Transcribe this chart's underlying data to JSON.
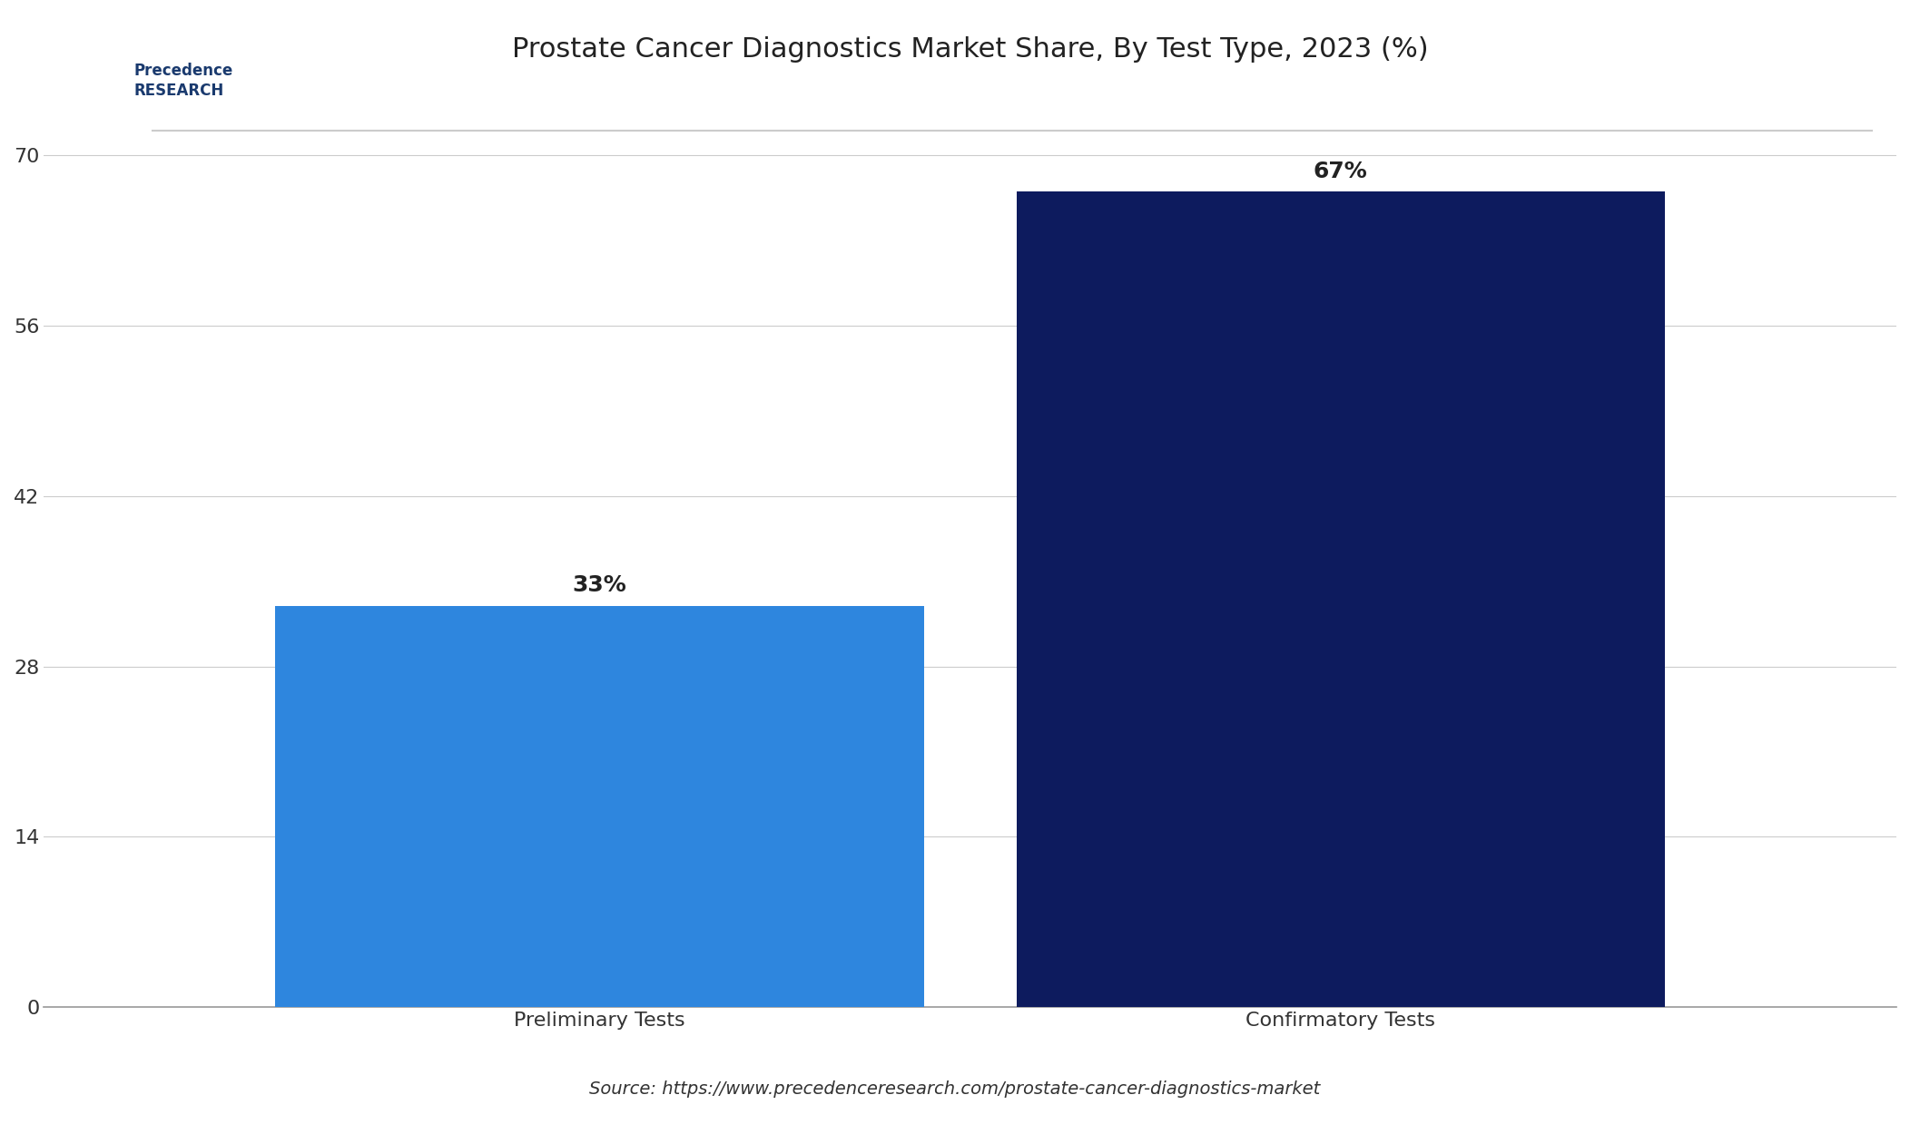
{
  "title": "Prostate Cancer Diagnostics Market Share, By Test Type, 2023 (%)",
  "categories": [
    "Preliminary Tests",
    "Confirmatory Tests"
  ],
  "values": [
    33,
    67
  ],
  "bar_colors": [
    "#2E86DE",
    "#0D1B5E"
  ],
  "bar_labels": [
    "33%",
    "67%"
  ],
  "yticks": [
    0,
    14,
    28,
    42,
    56,
    70
  ],
  "ylim": [
    0,
    76
  ],
  "background_color": "#FFFFFF",
  "grid_color": "#CCCCCC",
  "title_fontsize": 22,
  "tick_fontsize": 16,
  "label_fontsize": 16,
  "bar_label_fontsize": 18,
  "source_text": "Source: https://www.precedenceresearch.com/prostate-cancer-diagnostics-market",
  "source_fontsize": 14,
  "top_border_color": "#CCCCCC",
  "bar_width": 0.35
}
